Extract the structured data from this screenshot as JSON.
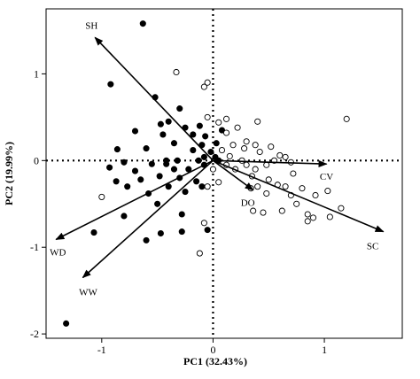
{
  "chart_data": {
    "type": "scatter",
    "title": "",
    "xlabel": "PC1 (32.43%)",
    "ylabel": "PC2 (19.99%)",
    "xlim": [
      -1.5,
      1.7
    ],
    "ylim": [
      -2.05,
      1.75
    ],
    "x_ticks": [
      -1,
      0,
      1
    ],
    "y_ticks": [
      -2,
      -1,
      0,
      1
    ],
    "reference_lines": {
      "x": 0,
      "y": 0,
      "style": "dotted"
    },
    "grid": false,
    "series": [
      {
        "marker": "filled-circle",
        "color": "#000000",
        "points": [
          {
            "x": -0.63,
            "y": 1.58
          },
          {
            "x": -0.92,
            "y": 0.88
          },
          {
            "x": -0.52,
            "y": 0.73
          },
          {
            "x": -0.3,
            "y": 0.6
          },
          {
            "x": -0.4,
            "y": 0.45
          },
          {
            "x": -0.47,
            "y": 0.42
          },
          {
            "x": -0.25,
            "y": 0.38
          },
          {
            "x": -0.18,
            "y": 0.3
          },
          {
            "x": -0.12,
            "y": 0.4
          },
          {
            "x": -0.07,
            "y": 0.28
          },
          {
            "x": -0.7,
            "y": 0.34
          },
          {
            "x": -0.45,
            "y": 0.3
          },
          {
            "x": -0.35,
            "y": 0.2
          },
          {
            "x": -0.1,
            "y": 0.18
          },
          {
            "x": 0.03,
            "y": 0.2
          },
          {
            "x": -0.6,
            "y": 0.14
          },
          {
            "x": -0.86,
            "y": 0.13
          },
          {
            "x": -0.18,
            "y": 0.12
          },
          {
            "x": -0.02,
            "y": 0.1
          },
          {
            "x": 0.02,
            "y": 0.04
          },
          {
            "x": -0.08,
            "y": 0.04
          },
          {
            "x": -0.32,
            "y": 0.0
          },
          {
            "x": -0.13,
            "y": 0.0
          },
          {
            "x": 0.05,
            "y": 0.0
          },
          {
            "x": -0.8,
            "y": -0.02
          },
          {
            "x": -0.55,
            "y": -0.04
          },
          {
            "x": -0.42,
            "y": -0.04
          },
          {
            "x": -0.35,
            "y": -0.1
          },
          {
            "x": -0.22,
            "y": -0.1
          },
          {
            "x": -0.08,
            "y": -0.05
          },
          {
            "x": -0.93,
            "y": -0.08
          },
          {
            "x": -0.7,
            "y": -0.12
          },
          {
            "x": -0.48,
            "y": -0.18
          },
          {
            "x": -0.3,
            "y": -0.2
          },
          {
            "x": -0.15,
            "y": -0.24
          },
          {
            "x": -0.87,
            "y": -0.24
          },
          {
            "x": -0.65,
            "y": -0.22
          },
          {
            "x": -0.4,
            "y": -0.3
          },
          {
            "x": -0.25,
            "y": -0.36
          },
          {
            "x": -0.58,
            "y": -0.38
          },
          {
            "x": -0.77,
            "y": -0.3
          },
          {
            "x": -0.1,
            "y": -0.3
          },
          {
            "x": -0.5,
            "y": -0.5
          },
          {
            "x": -0.28,
            "y": -0.62
          },
          {
            "x": -0.8,
            "y": -0.64
          },
          {
            "x": -0.47,
            "y": -0.84
          },
          {
            "x": -0.28,
            "y": -0.82
          },
          {
            "x": -0.05,
            "y": -0.8
          },
          {
            "x": -1.07,
            "y": -0.83
          },
          {
            "x": -0.6,
            "y": -0.92
          },
          {
            "x": -1.32,
            "y": -1.88
          },
          {
            "x": -0.42,
            "y": 0.0
          },
          {
            "x": 0.08,
            "y": 0.35
          }
        ]
      },
      {
        "marker": "open-circle",
        "color": "#000000",
        "points": [
          {
            "x": -0.33,
            "y": 1.02
          },
          {
            "x": -0.05,
            "y": 0.9
          },
          {
            "x": -0.08,
            "y": 0.85
          },
          {
            "x": 1.2,
            "y": 0.48
          },
          {
            "x": 0.05,
            "y": 0.44
          },
          {
            "x": 0.12,
            "y": 0.48
          },
          {
            "x": 0.4,
            "y": 0.45
          },
          {
            "x": 0.22,
            "y": 0.38
          },
          {
            "x": 0.12,
            "y": 0.32
          },
          {
            "x": -0.05,
            "y": 0.5
          },
          {
            "x": 0.3,
            "y": 0.22
          },
          {
            "x": 0.18,
            "y": 0.18
          },
          {
            "x": 0.28,
            "y": 0.14
          },
          {
            "x": 0.38,
            "y": 0.18
          },
          {
            "x": 0.52,
            "y": 0.16
          },
          {
            "x": 0.08,
            "y": 0.12
          },
          {
            "x": 0.42,
            "y": 0.1
          },
          {
            "x": 0.6,
            "y": 0.06
          },
          {
            "x": 0.65,
            "y": 0.04
          },
          {
            "x": 0.55,
            "y": 0.0
          },
          {
            "x": 0.7,
            "y": -0.02
          },
          {
            "x": 0.48,
            "y": -0.05
          },
          {
            "x": 0.38,
            "y": -0.1
          },
          {
            "x": 0.3,
            "y": -0.05
          },
          {
            "x": 0.2,
            "y": -0.1
          },
          {
            "x": 0.12,
            "y": -0.05
          },
          {
            "x": 0.72,
            "y": -0.15
          },
          {
            "x": 0.5,
            "y": -0.22
          },
          {
            "x": 0.58,
            "y": -0.28
          },
          {
            "x": 0.4,
            "y": -0.3
          },
          {
            "x": 0.65,
            "y": -0.3
          },
          {
            "x": 0.8,
            "y": -0.32
          },
          {
            "x": 0.34,
            "y": -0.32
          },
          {
            "x": 0.48,
            "y": -0.38
          },
          {
            "x": 0.7,
            "y": -0.4
          },
          {
            "x": 0.92,
            "y": -0.4
          },
          {
            "x": 1.03,
            "y": -0.35
          },
          {
            "x": 0.75,
            "y": -0.5
          },
          {
            "x": 0.45,
            "y": -0.6
          },
          {
            "x": 0.62,
            "y": -0.58
          },
          {
            "x": 0.85,
            "y": -0.62
          },
          {
            "x": 0.9,
            "y": -0.66
          },
          {
            "x": 1.05,
            "y": -0.65
          },
          {
            "x": 1.15,
            "y": -0.55
          },
          {
            "x": 0.85,
            "y": -0.7
          },
          {
            "x": 0.36,
            "y": -0.58
          },
          {
            "x": -0.05,
            "y": -0.3
          },
          {
            "x": -0.08,
            "y": -0.72
          },
          {
            "x": -1.0,
            "y": -0.42
          },
          {
            "x": -0.12,
            "y": -1.07
          },
          {
            "x": 0.0,
            "y": -0.1
          },
          {
            "x": 0.05,
            "y": -0.25
          },
          {
            "x": 0.26,
            "y": 0.0
          },
          {
            "x": 0.15,
            "y": 0.05
          },
          {
            "x": 0.35,
            "y": -0.18
          }
        ]
      }
    ],
    "vectors": [
      {
        "label": "SH",
        "x": -1.06,
        "y": 1.42
      },
      {
        "label": "CV",
        "x": 1.02,
        "y": -0.04
      },
      {
        "label": "SC",
        "x": 1.53,
        "y": -0.82
      },
      {
        "label": "DO",
        "x": 0.36,
        "y": -0.34
      },
      {
        "label": "WD",
        "x": -1.41,
        "y": -0.91
      },
      {
        "label": "WW",
        "x": -1.17,
        "y": -1.35
      }
    ]
  }
}
